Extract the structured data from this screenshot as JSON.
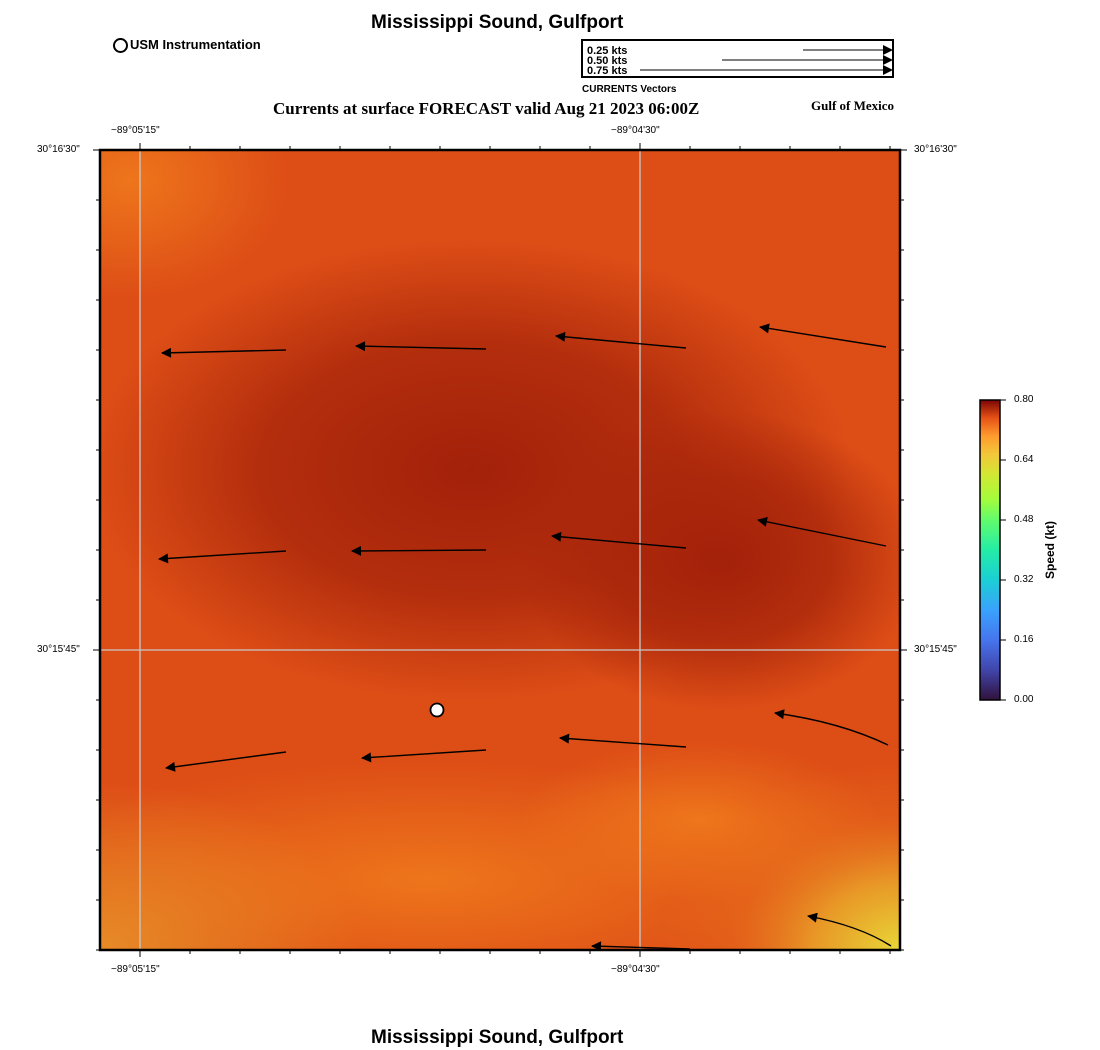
{
  "header": {
    "title": "Mississippi Sound, Gulfport",
    "subtitle": "Currents at surface FORECAST valid Aug 21 2023 06:00Z",
    "region": "Gulf of Mexico",
    "marker_legend": "USM Instrumentation"
  },
  "vector_legend": {
    "entries": [
      "0.25 kts",
      "0.50 kts",
      "0.75 kts"
    ],
    "caption": "CURRENTS Vectors"
  },
  "map": {
    "lon_ticks": [
      "−89°05'15\"",
      "−89°04'30\""
    ],
    "lat_ticks": [
      "30°16'30\"",
      "30°15'45\""
    ],
    "colors": {
      "deep": "#a3210a",
      "mid": "#e3551a",
      "light": "#f07a1c",
      "yellow": "#e8d838"
    }
  },
  "colorbar": {
    "label": "Speed (kt)",
    "ticks": [
      "0.80",
      "0.64",
      "0.48",
      "0.32",
      "0.16",
      "0.00"
    ],
    "range": [
      0.0,
      0.8
    ]
  },
  "footer": {
    "title": "Mississippi Sound, Gulfport"
  }
}
